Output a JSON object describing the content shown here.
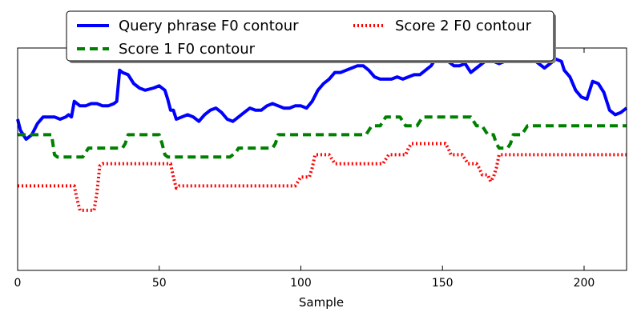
{
  "chart_data": {
    "type": "line",
    "title": "",
    "xlabel": "Sample",
    "ylabel": "",
    "xlim": [
      0,
      215
    ],
    "ylim": [
      0,
      100
    ],
    "xticks": [
      0,
      50,
      100,
      150,
      200
    ],
    "grid": false,
    "legend_position": "top-center",
    "series": [
      {
        "name": "Query phrase F0 contour",
        "color": "#0000ff",
        "style": "solid",
        "points": [
          [
            0,
            68
          ],
          [
            1,
            63
          ],
          [
            3,
            59
          ],
          [
            5,
            61
          ],
          [
            7,
            66
          ],
          [
            9,
            69
          ],
          [
            11,
            69
          ],
          [
            13,
            69
          ],
          [
            15,
            68
          ],
          [
            17,
            69
          ],
          [
            18,
            70
          ],
          [
            19,
            69
          ],
          [
            20,
            76
          ],
          [
            22,
            74
          ],
          [
            24,
            74
          ],
          [
            26,
            75
          ],
          [
            28,
            75
          ],
          [
            30,
            74
          ],
          [
            32,
            74
          ],
          [
            34,
            75
          ],
          [
            35,
            76
          ],
          [
            36,
            90
          ],
          [
            37,
            89
          ],
          [
            39,
            88
          ],
          [
            41,
            84
          ],
          [
            43,
            82
          ],
          [
            45,
            81
          ],
          [
            48,
            82
          ],
          [
            50,
            83
          ],
          [
            52,
            81
          ],
          [
            53,
            77
          ],
          [
            54,
            72
          ],
          [
            55,
            72
          ],
          [
            56,
            68
          ],
          [
            58,
            69
          ],
          [
            60,
            70
          ],
          [
            62,
            69
          ],
          [
            64,
            67
          ],
          [
            66,
            70
          ],
          [
            68,
            72
          ],
          [
            70,
            73
          ],
          [
            72,
            71
          ],
          [
            74,
            68
          ],
          [
            76,
            67
          ],
          [
            78,
            69
          ],
          [
            80,
            71
          ],
          [
            82,
            73
          ],
          [
            84,
            72
          ],
          [
            86,
            72
          ],
          [
            88,
            74
          ],
          [
            90,
            75
          ],
          [
            92,
            74
          ],
          [
            94,
            73
          ],
          [
            96,
            73
          ],
          [
            98,
            74
          ],
          [
            100,
            74
          ],
          [
            102,
            73
          ],
          [
            104,
            76
          ],
          [
            106,
            81
          ],
          [
            108,
            84
          ],
          [
            110,
            86
          ],
          [
            112,
            89
          ],
          [
            114,
            89
          ],
          [
            116,
            90
          ],
          [
            118,
            91
          ],
          [
            120,
            92
          ],
          [
            122,
            92
          ],
          [
            124,
            90
          ],
          [
            126,
            87
          ],
          [
            128,
            86
          ],
          [
            130,
            86
          ],
          [
            132,
            86
          ],
          [
            134,
            87
          ],
          [
            136,
            86
          ],
          [
            138,
            87
          ],
          [
            140,
            88
          ],
          [
            142,
            88
          ],
          [
            144,
            90
          ],
          [
            146,
            92
          ],
          [
            148,
            96
          ],
          [
            150,
            94
          ],
          [
            152,
            94
          ],
          [
            154,
            92
          ],
          [
            156,
            92
          ],
          [
            158,
            93
          ],
          [
            160,
            89
          ],
          [
            162,
            91
          ],
          [
            164,
            93
          ],
          [
            166,
            95
          ],
          [
            168,
            94
          ],
          [
            170,
            93
          ],
          [
            172,
            94
          ],
          [
            174,
            95
          ],
          [
            176,
            96
          ],
          [
            178,
            97
          ],
          [
            180,
            97
          ],
          [
            182,
            95
          ],
          [
            184,
            93
          ],
          [
            186,
            91
          ],
          [
            188,
            93
          ],
          [
            190,
            95
          ],
          [
            192,
            94
          ],
          [
            193,
            90
          ],
          [
            195,
            87
          ],
          [
            197,
            81
          ],
          [
            199,
            78
          ],
          [
            201,
            77
          ],
          [
            203,
            85
          ],
          [
            205,
            84
          ],
          [
            207,
            80
          ],
          [
            209,
            72
          ],
          [
            211,
            70
          ],
          [
            213,
            71
          ],
          [
            215,
            73
          ]
        ]
      },
      {
        "name": "Score 1 F0 contour",
        "color": "#008000",
        "style": "dashed",
        "points": [
          [
            0,
            61
          ],
          [
            12,
            61
          ],
          [
            13,
            52
          ],
          [
            14,
            51
          ],
          [
            23,
            51
          ],
          [
            24,
            53
          ],
          [
            25,
            55
          ],
          [
            37,
            55
          ],
          [
            38,
            57
          ],
          [
            39,
            61
          ],
          [
            50,
            61
          ],
          [
            51,
            57
          ],
          [
            52,
            52
          ],
          [
            53,
            51
          ],
          [
            75,
            51
          ],
          [
            77,
            53
          ],
          [
            78,
            55
          ],
          [
            83,
            55
          ],
          [
            90,
            55
          ],
          [
            91,
            57
          ],
          [
            92,
            61
          ],
          [
            123,
            61
          ],
          [
            124,
            63
          ],
          [
            125,
            65
          ],
          [
            128,
            65
          ],
          [
            129,
            67
          ],
          [
            130,
            69
          ],
          [
            135,
            69
          ],
          [
            136,
            67
          ],
          [
            137,
            65
          ],
          [
            141,
            65
          ],
          [
            142,
            67
          ],
          [
            143,
            69
          ],
          [
            148,
            69
          ],
          [
            160,
            69
          ],
          [
            161,
            67
          ],
          [
            162,
            65
          ],
          [
            164,
            65
          ],
          [
            165,
            63
          ],
          [
            166,
            61
          ],
          [
            168,
            61
          ],
          [
            169,
            57
          ],
          [
            170,
            55
          ],
          [
            173,
            55
          ],
          [
            174,
            57
          ],
          [
            175,
            61
          ],
          [
            178,
            61
          ],
          [
            179,
            63
          ],
          [
            180,
            65
          ],
          [
            215,
            65
          ]
        ]
      },
      {
        "name": "Score 2 F0 contour",
        "color": "#ff0000",
        "style": "dotted",
        "points": [
          [
            0,
            38
          ],
          [
            20,
            38
          ],
          [
            21,
            32
          ],
          [
            22,
            27
          ],
          [
            27,
            27
          ],
          [
            28,
            35
          ],
          [
            29,
            47
          ],
          [
            30,
            48
          ],
          [
            54,
            48
          ],
          [
            55,
            42
          ],
          [
            56,
            37
          ],
          [
            57,
            38
          ],
          [
            98,
            38
          ],
          [
            99,
            40
          ],
          [
            100,
            42
          ],
          [
            103,
            42
          ],
          [
            104,
            46
          ],
          [
            105,
            52
          ],
          [
            110,
            52
          ],
          [
            111,
            50
          ],
          [
            112,
            48
          ],
          [
            129,
            48
          ],
          [
            130,
            50
          ],
          [
            131,
            52
          ],
          [
            137,
            52
          ],
          [
            138,
            55
          ],
          [
            139,
            57
          ],
          [
            151,
            57
          ],
          [
            152,
            55
          ],
          [
            153,
            52
          ],
          [
            157,
            52
          ],
          [
            158,
            50
          ],
          [
            159,
            48
          ],
          [
            162,
            48
          ],
          [
            163,
            46
          ],
          [
            164,
            43
          ],
          [
            166,
            43
          ],
          [
            167,
            40
          ],
          [
            168,
            42
          ],
          [
            169,
            46
          ],
          [
            170,
            52
          ],
          [
            215,
            52
          ]
        ]
      }
    ]
  }
}
